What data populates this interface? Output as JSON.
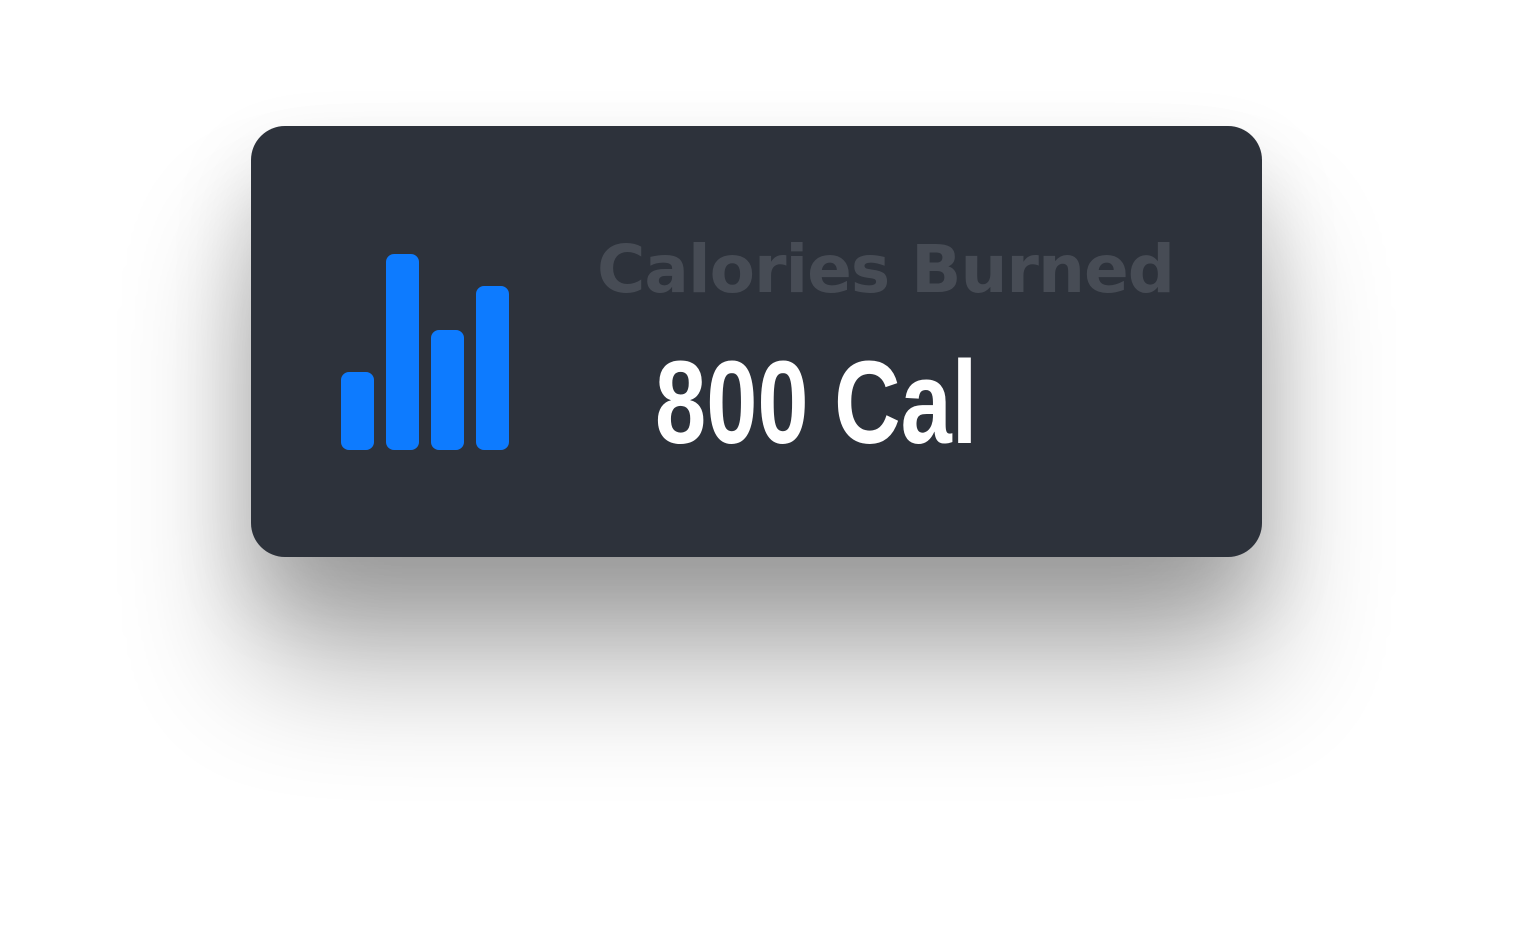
{
  "widget": {
    "icon": "bar-chart-icon",
    "label": "Calories Burned",
    "value": "800 Cal"
  },
  "colors": {
    "card_background": "#2d323b",
    "accent": "#0d7bff",
    "label": "#474c55",
    "value": "#ffffff"
  }
}
